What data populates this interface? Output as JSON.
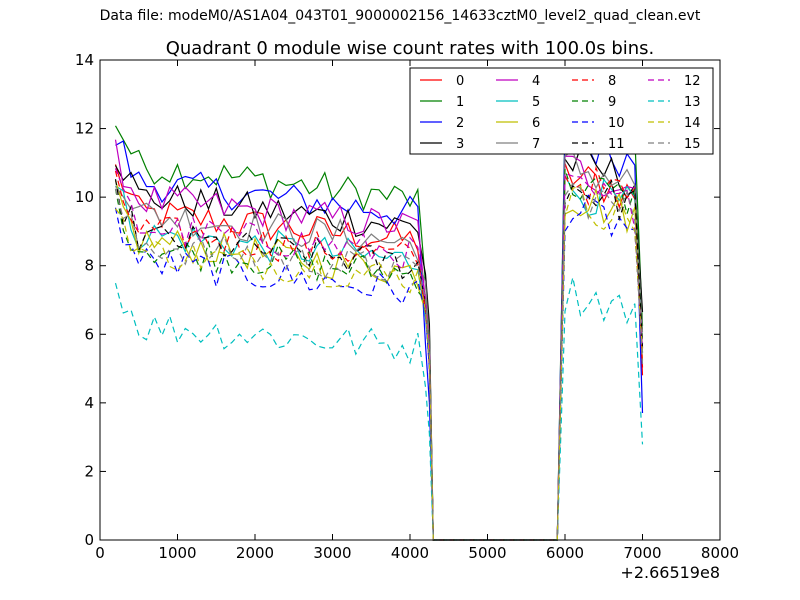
{
  "figure": {
    "suptitle": "Data file: modeM0/AS1A04_043T01_9000002156_14633cztM0_level2_quad_clean.evt"
  },
  "chart_data": {
    "type": "line",
    "title": "Quadrant 0 module wise count rates with 100.0s bins.",
    "xlabel": "",
    "ylabel": "",
    "x_offset_label": "+2.66519e8",
    "xlim": [
      0,
      8000
    ],
    "ylim": [
      0,
      14
    ],
    "xticks": [
      "0",
      "1000",
      "2000",
      "3000",
      "4000",
      "5000",
      "6000",
      "7000",
      "8000"
    ],
    "yticks": [
      "0",
      "2",
      "4",
      "6",
      "8",
      "10",
      "12",
      "14"
    ],
    "grid": false,
    "legend_position": "top-right",
    "legend_columns": 4,
    "series": [
      {
        "name": "0",
        "color": "#ff0000",
        "style": "solid",
        "level": 9.6,
        "drop": 0.09,
        "end": 5.0,
        "peak": 10.6
      },
      {
        "name": "1",
        "color": "#008000",
        "style": "solid",
        "level": 11.0,
        "drop": 0.11,
        "end": 6.0,
        "peak": 12.6
      },
      {
        "name": "2",
        "color": "#0000ff",
        "style": "solid",
        "level": 10.5,
        "drop": 0.1,
        "end": 4.0,
        "peak": 11.6
      },
      {
        "name": "3",
        "color": "#000000",
        "style": "solid",
        "level": 10.1,
        "drop": 0.1,
        "end": 6.3,
        "peak": 11.0
      },
      {
        "name": "4",
        "color": "#bf00bf",
        "style": "solid",
        "level": 10.0,
        "drop": 0.09,
        "end": 5.6,
        "peak": 10.8
      },
      {
        "name": "5",
        "color": "#00bfbf",
        "style": "solid",
        "level": 9.0,
        "drop": 0.09,
        "end": 5.2,
        "peak": 10.2
      },
      {
        "name": "6",
        "color": "#bfbf00",
        "style": "solid",
        "level": 8.8,
        "drop": 0.1,
        "end": 5.3,
        "peak": 10.0
      },
      {
        "name": "7",
        "color": "#808080",
        "style": "solid",
        "level": 9.6,
        "drop": 0.1,
        "end": 5.8,
        "peak": 10.9
      },
      {
        "name": "8",
        "color": "#ff0000",
        "style": "dashed",
        "level": 9.1,
        "drop": 0.09,
        "end": 5.4,
        "peak": 10.5
      },
      {
        "name": "9",
        "color": "#008000",
        "style": "dashed",
        "level": 8.6,
        "drop": 0.09,
        "end": 5.6,
        "peak": 10.4
      },
      {
        "name": "10",
        "color": "#0000ff",
        "style": "dashed",
        "level": 8.2,
        "drop": 0.1,
        "end": 5.0,
        "peak": 9.6
      },
      {
        "name": "11",
        "color": "#000000",
        "style": "dashed",
        "level": 8.9,
        "drop": 0.09,
        "end": 5.5,
        "peak": 10.3
      },
      {
        "name": "12",
        "color": "#bf00bf",
        "style": "dashed",
        "level": 9.2,
        "drop": 0.09,
        "end": 5.6,
        "peak": 10.2
      },
      {
        "name": "13",
        "color": "#00bfbf",
        "style": "dashed",
        "level": 6.3,
        "drop": 0.07,
        "end": 3.1,
        "peak": 7.2
      },
      {
        "name": "14",
        "color": "#bfbf00",
        "style": "dashed",
        "level": 8.5,
        "drop": 0.09,
        "end": 5.3,
        "peak": 9.9
      },
      {
        "name": "15",
        "color": "#808080",
        "style": "dashed",
        "level": 8.7,
        "drop": 0.09,
        "end": 5.4,
        "peak": 10.1
      }
    ],
    "segments": {
      "first_orbit_x": [
        200,
        4200
      ],
      "gap_x": [
        4300,
        5900
      ],
      "second_orbit_x": [
        6000,
        7000
      ],
      "bin_width": 100
    }
  }
}
